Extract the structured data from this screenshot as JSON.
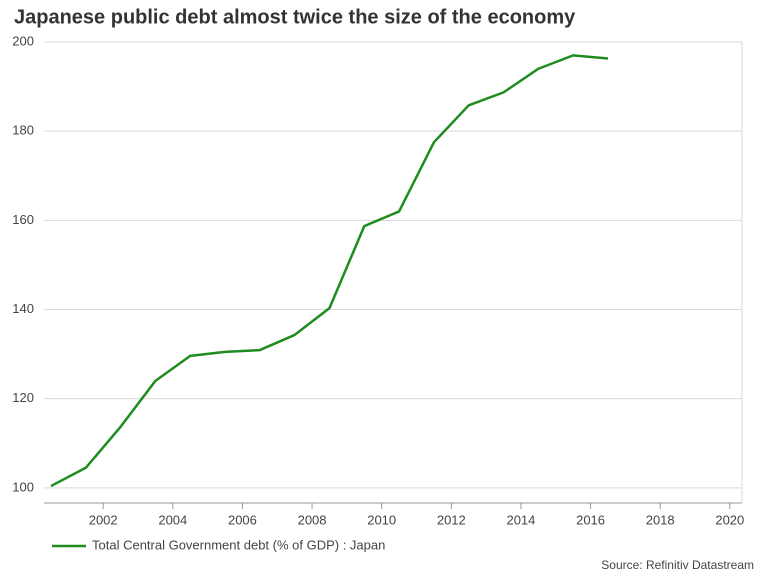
{
  "chart_data": {
    "type": "line",
    "title": "Japanese public debt almost twice the size of the economy",
    "x": [
      2000.5,
      2001.5,
      2002.5,
      2003.5,
      2004.5,
      2005.5,
      2006.5,
      2007.5,
      2008.5,
      2009.5,
      2010.5,
      2011.5,
      2012.5,
      2013.5,
      2014.5,
      2015.5,
      2016.5
    ],
    "series": [
      {
        "name": "Total Central Government debt (% of GDP) : Japan",
        "color": "#1e8c1e",
        "values": [
          100.4,
          104.5,
          113.7,
          124,
          129.6,
          130.5,
          130.9,
          134.3,
          140.3,
          158.7,
          162,
          177.5,
          185.8,
          188.7,
          194,
          197,
          196.3
        ]
      }
    ],
    "xlim": [
      2000.3,
      2020.35
    ],
    "xticks": [
      2002,
      2004,
      2006,
      2008,
      2010,
      2012,
      2014,
      2016,
      2018,
      2020
    ],
    "ylim": [
      96.6,
      200
    ],
    "yticks": [
      100,
      120,
      140,
      160,
      180,
      200
    ],
    "grid": true,
    "legend": "bottom-left",
    "source": "Source: Refinitiv Datastream"
  }
}
